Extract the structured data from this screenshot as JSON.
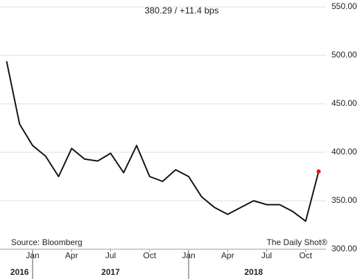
{
  "chart_data": {
    "type": "line",
    "title": "380.29  /  +11.4 bps",
    "x": [
      "2016-11",
      "2016-12",
      "2017-01",
      "2017-02",
      "2017-03",
      "2017-04",
      "2017-05",
      "2017-06",
      "2017-07",
      "2017-08",
      "2017-09",
      "2017-10",
      "2017-11",
      "2017-12",
      "2018-01",
      "2018-02",
      "2018-03",
      "2018-04",
      "2018-05",
      "2018-06",
      "2018-07",
      "2018-08",
      "2018-09",
      "2018-10",
      "2018-11"
    ],
    "series": [
      {
        "color": "#111111",
        "values": [
          494,
          429,
          407,
          396,
          375,
          404,
          393,
          391,
          399,
          379,
          407,
          375,
          370,
          382,
          375,
          354,
          343,
          336,
          343,
          350,
          346,
          346,
          339,
          329,
          380.29
        ]
      }
    ],
    "last_point_color": "#e8161b",
    "ylim": [
      300,
      550
    ],
    "yticks": [
      {
        "value": 300,
        "label": "300.00"
      },
      {
        "value": 350,
        "label": "350.00"
      },
      {
        "value": 400,
        "label": "400.00"
      },
      {
        "value": 450,
        "label": "450.00"
      },
      {
        "value": 500,
        "label": "500.00"
      },
      {
        "value": 550,
        "label": "550.00"
      }
    ],
    "xticks": [
      {
        "value": "2017-01",
        "label": "Jan"
      },
      {
        "value": "2017-04",
        "label": "Apr"
      },
      {
        "value": "2017-07",
        "label": "Jul"
      },
      {
        "value": "2017-10",
        "label": "Oct"
      },
      {
        "value": "2018-01",
        "label": "Jan"
      },
      {
        "value": "2018-04",
        "label": "Apr"
      },
      {
        "value": "2018-07",
        "label": "Jul"
      },
      {
        "value": "2018-10",
        "label": "Oct"
      }
    ],
    "years": [
      "2016",
      "2017",
      "2018"
    ],
    "grid": true,
    "source": "Source: Bloomberg",
    "credit": "The Daily Shot®"
  }
}
